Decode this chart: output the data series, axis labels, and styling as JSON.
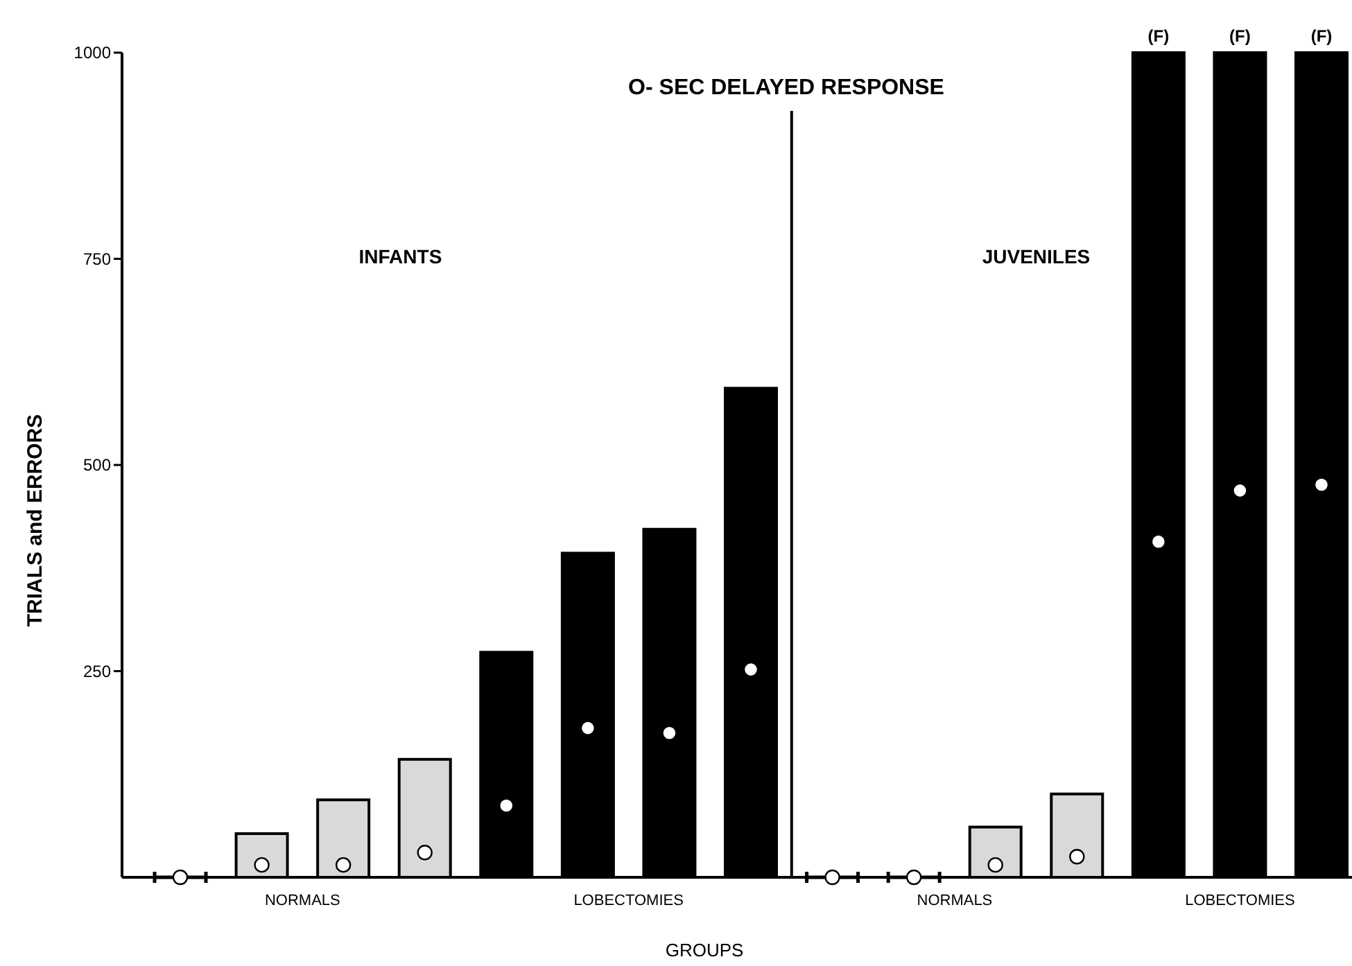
{
  "chart_data": {
    "type": "bar",
    "title": "O- SEC DELAYED RESPONSE",
    "xlabel": "GROUPS",
    "ylabel": "TRIALS and ERRORS",
    "ylim": [
      0,
      1000
    ],
    "yticks": [
      250,
      500,
      750,
      1000
    ],
    "marker": "circle",
    "annotations": [
      "INFANTS",
      "JUVENILES",
      "NORMALS",
      "LOBECTOMIES",
      "NORMALS",
      "LOBECTOMIES"
    ],
    "categories": [
      null,
      null,
      null,
      null,
      null,
      null,
      null,
      null,
      null,
      null,
      null,
      null,
      null,
      null,
      null
    ],
    "series": [
      {
        "colors": [
          "#d9d9d9",
          "#d9d9d9",
          "#d9d9d9",
          "#d9d9d9",
          "#000000",
          "#000000",
          "#000000",
          "#000000",
          "#d9d9d9",
          "#d9d9d9",
          "#d9d9d9",
          "#d9d9d9",
          "#000000",
          "#000000",
          "#000000"
        ],
        "values": [
          0,
          53,
          94,
          143,
          273,
          393,
          422,
          593,
          0,
          0,
          61,
          101,
          1000,
          1000,
          1000
        ],
        "value_labels": [
          null,
          null,
          null,
          null,
          null,
          null,
          null,
          null,
          null,
          null,
          null,
          null,
          "(F)",
          "(F)",
          "(F)"
        ]
      },
      {
        "type": "scatter",
        "color": "#ffffff",
        "values": [
          0,
          15,
          15,
          30,
          87,
          181,
          175,
          252,
          0,
          0,
          15,
          25,
          407,
          469,
          476
        ]
      }
    ]
  }
}
